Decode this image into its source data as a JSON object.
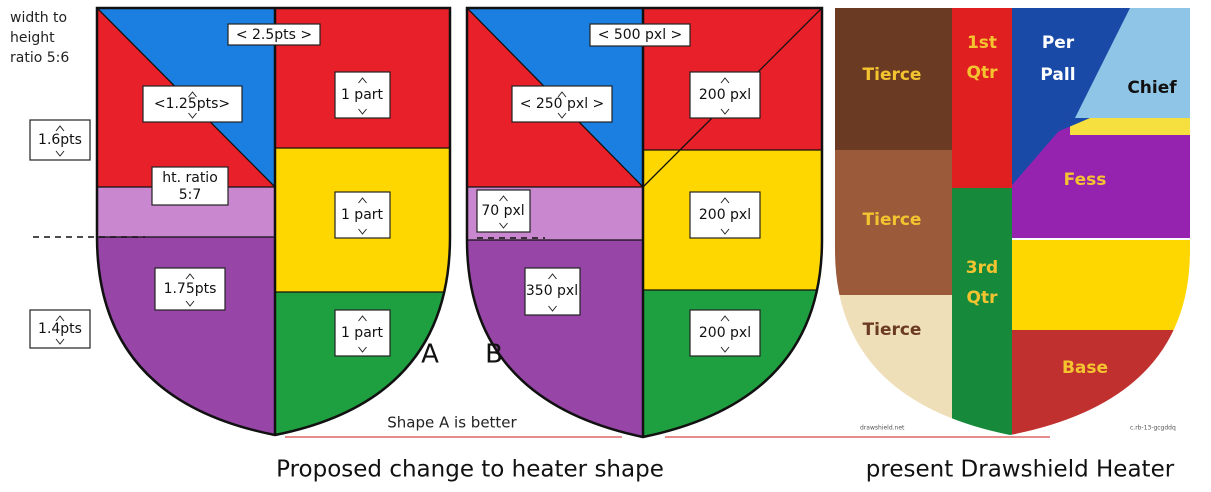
{
  "left_note": [
    "width to",
    "height",
    "ratio 5:6"
  ],
  "shield_a": {
    "width": "< 2.5pts >",
    "half_width": "<1.25pts>",
    "chief_height": "1.6pts",
    "ratio_note": [
      "ht. ratio",
      "5:7"
    ],
    "parts": [
      "1 part",
      "1 part",
      "1 part"
    ],
    "base_height": "1.75pts",
    "lower_height": "1.4pts",
    "letter": "A"
  },
  "shield_b": {
    "width": "< 500 pxl >",
    "half_width": "< 250 pxl >",
    "band_height": "70 pxl",
    "base_height": "350 pxl",
    "parts": [
      "200 pxl",
      "200 pxl",
      "200 pxl"
    ],
    "letter": "B"
  },
  "comparison": "Shape A is better",
  "captions": [
    "Proposed change to heater shape",
    "present Drawshield Heater"
  ],
  "drawshield": {
    "tierces": [
      "Tierce",
      "Tierce",
      "Tierce"
    ],
    "first_qtr": [
      "1st",
      "Qtr"
    ],
    "third_qtr": [
      "3rd",
      "Qtr"
    ],
    "per_pall": [
      "Per",
      "Pall"
    ],
    "chief": "Chief",
    "fess": "Fess",
    "base": "Base",
    "credit": "drawshield.net",
    "code": "c.rb-13-gcgddq"
  }
}
